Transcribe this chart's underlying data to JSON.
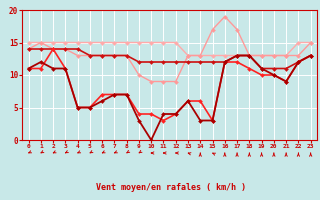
{
  "series": [
    {
      "color": "#ffaaaa",
      "lw": 1.0,
      "marker": "D",
      "ms": 2.0,
      "data": [
        15,
        15,
        15,
        15,
        15,
        15,
        15,
        15,
        15,
        15,
        15,
        15,
        15,
        13,
        13,
        13,
        13,
        13,
        13,
        13,
        13,
        13,
        15,
        15
      ]
    },
    {
      "color": "#ff9999",
      "lw": 1.0,
      "marker": "D",
      "ms": 2.0,
      "data": [
        14,
        15,
        14,
        14,
        13,
        13,
        13,
        13,
        13,
        10,
        9,
        9,
        9,
        13,
        13,
        17,
        19,
        17,
        13,
        13,
        13,
        13,
        13,
        15
      ]
    },
    {
      "color": "#cc1111",
      "lw": 1.2,
      "marker": "D",
      "ms": 2.0,
      "data": [
        14,
        14,
        14,
        14,
        14,
        13,
        13,
        13,
        13,
        12,
        12,
        12,
        12,
        12,
        12,
        12,
        12,
        13,
        13,
        11,
        11,
        11,
        12,
        13
      ]
    },
    {
      "color": "#ff2222",
      "lw": 1.2,
      "marker": "D",
      "ms": 2.0,
      "data": [
        11,
        11,
        14,
        11,
        5,
        5,
        7,
        7,
        7,
        4,
        4,
        3,
        4,
        6,
        6,
        3,
        12,
        12,
        11,
        10,
        10,
        9,
        12,
        13
      ]
    },
    {
      "color": "#aa0000",
      "lw": 1.3,
      "marker": "D",
      "ms": 2.0,
      "data": [
        11,
        12,
        11,
        11,
        5,
        5,
        6,
        7,
        7,
        3,
        0,
        4,
        4,
        6,
        3,
        3,
        12,
        13,
        13,
        11,
        10,
        9,
        12,
        13
      ]
    }
  ],
  "xlabel": "Vent moyen/en rafales ( km/h )",
  "ylim": [
    0,
    20
  ],
  "yticks": [
    0,
    5,
    10,
    15,
    20
  ],
  "xticks": [
    0,
    1,
    2,
    3,
    4,
    5,
    6,
    7,
    8,
    9,
    10,
    11,
    12,
    13,
    14,
    15,
    16,
    17,
    18,
    19,
    20,
    21,
    22,
    23
  ],
  "bg_color": "#c8e8e8",
  "grid_color": "#aad4d4",
  "axis_color": "#cc0000",
  "arrow_angles": [
    210,
    215,
    210,
    215,
    210,
    215,
    210,
    210,
    220,
    220,
    180,
    180,
    180,
    160,
    90,
    150,
    90,
    90,
    90,
    90,
    90,
    90,
    90,
    90
  ]
}
